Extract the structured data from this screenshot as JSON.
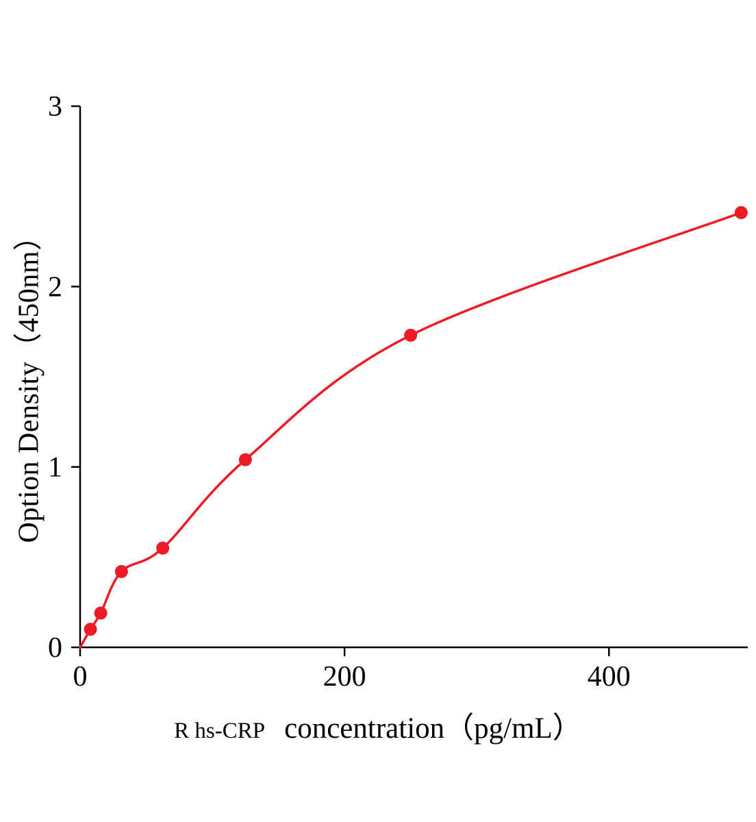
{
  "chart_data": {
    "type": "scatter",
    "title": "",
    "x": [
      7.8,
      15.6,
      31.25,
      62.5,
      125,
      250,
      500
    ],
    "y": [
      0.1,
      0.19,
      0.42,
      0.55,
      1.04,
      1.73,
      2.41
    ],
    "curve_through_origin": true,
    "xlabel_prefix": "R hs-CRP",
    "xlabel_main": "concentration（pg/mL）",
    "ylabel": "Option Density（450nm）",
    "xlim": [
      0,
      505
    ],
    "ylim": [
      0,
      3
    ],
    "x_ticks": [
      0,
      200,
      400
    ],
    "y_ticks": [
      0,
      1,
      2,
      3
    ],
    "point_color": "#ed1c24",
    "line_color": "#ed1c24",
    "axis_color": "#000000",
    "background": "#ffffff",
    "grid": false,
    "legend": "none"
  }
}
